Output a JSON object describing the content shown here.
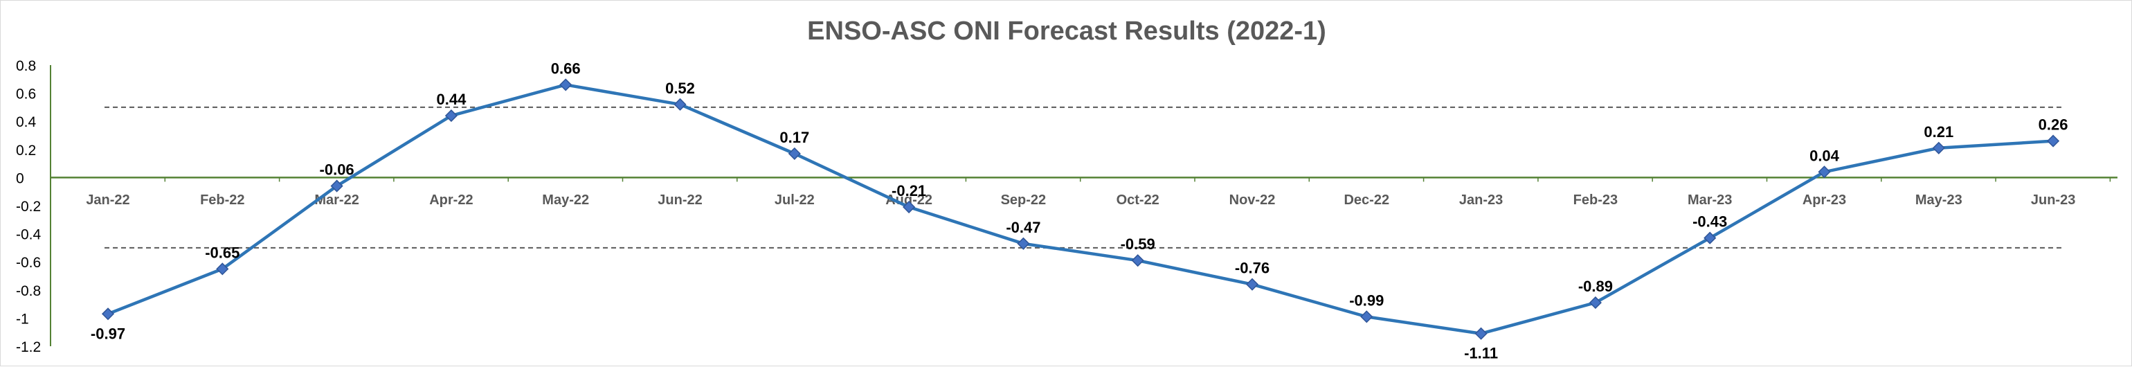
{
  "chart_data": {
    "type": "line",
    "title": "ENSO-ASC ONI Forecast Results (2022-1)",
    "categories": [
      "Jan-22",
      "Feb-22",
      "Mar-22",
      "Apr-22",
      "May-22",
      "Jun-22",
      "Jul-22",
      "Aug-22",
      "Sep-22",
      "Oct-22",
      "Nov-22",
      "Dec-22",
      "Jan-23",
      "Feb-23",
      "Mar-23",
      "Apr-23",
      "May-23",
      "Jun-23"
    ],
    "series": [
      {
        "values": [
          -0.97,
          -0.65,
          -0.06,
          0.44,
          0.66,
          0.52,
          0.17,
          -0.21,
          -0.47,
          -0.59,
          -0.76,
          -0.99,
          -1.11,
          -0.89,
          -0.43,
          0.04,
          0.21,
          0.26
        ],
        "labels": [
          "-0.97",
          "-0.65",
          "-0.06",
          "0.44",
          "0.66",
          "0.52",
          "0.17",
          "-0.21",
          "-0.47",
          "-0.59",
          "-0.76",
          "-0.99",
          "-1.11",
          "-0.89",
          "-0.43",
          "0.04",
          "0.21",
          "0.26"
        ],
        "color": "#2e75b6",
        "marker": "diamond"
      }
    ],
    "reference_lines": [
      0.5,
      -0.5
    ],
    "ylim": [
      -1.2,
      0.8
    ],
    "yticks": [
      "0.8",
      "0.6",
      "0.4",
      "0.2",
      "0",
      "-0.2",
      "-0.4",
      "-0.6",
      "-0.8",
      "-1",
      "-1.2"
    ],
    "xlabel": "",
    "ylabel": "",
    "grid": false,
    "legend": "none",
    "axis_color": "#548235",
    "reference_line_color": "#595959"
  }
}
